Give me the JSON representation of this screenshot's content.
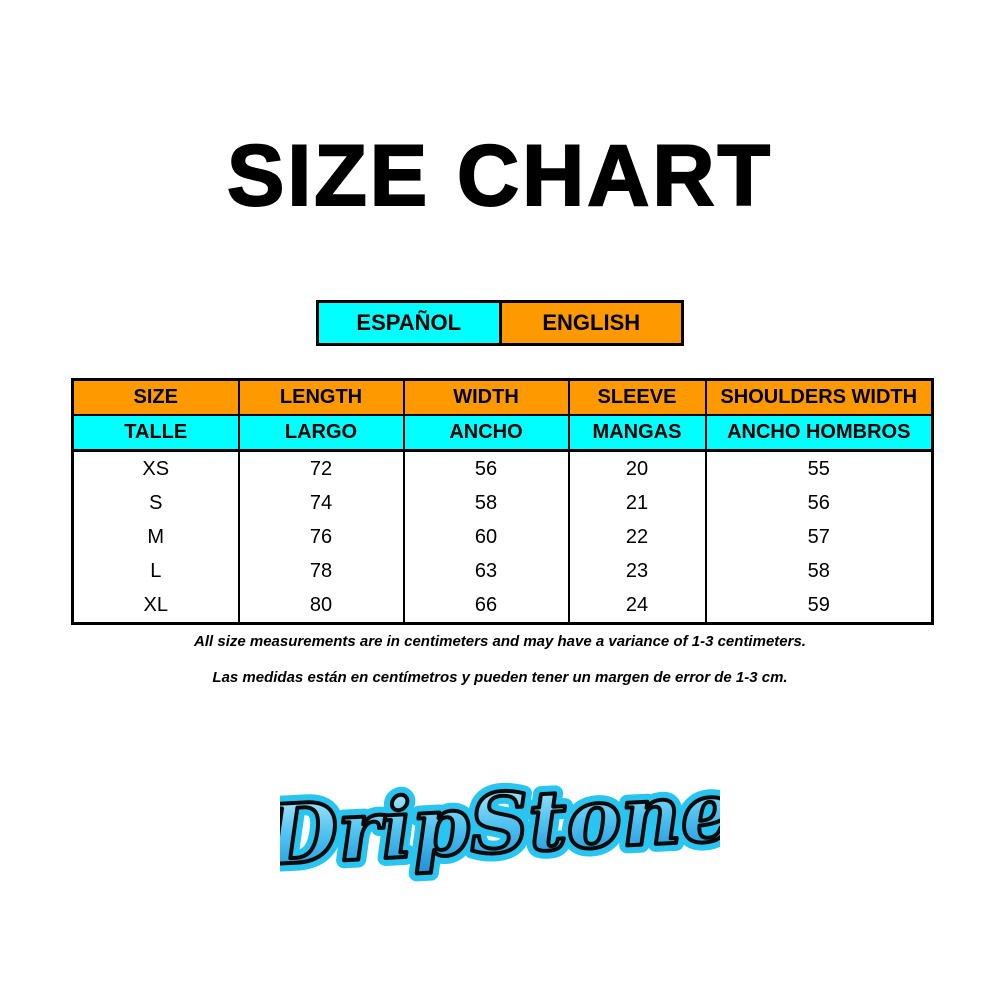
{
  "title": "SIZE CHART",
  "language_toggle": {
    "espanol": "ESPAÑOL",
    "english": "ENGLISH"
  },
  "colors": {
    "orange": "#ff9900",
    "cyan": "#00ffff"
  },
  "table": {
    "headers_en": [
      "SIZE",
      "LENGTH",
      "WIDTH",
      "SLEEVE",
      "SHOULDERS WIDTH"
    ],
    "headers_es": [
      "TALLE",
      "LARGO",
      "ANCHO",
      "MANGAS",
      "ANCHO HOMBROS"
    ],
    "rows": [
      [
        "XS",
        "72",
        "56",
        "20",
        "55"
      ],
      [
        "S",
        "74",
        "58",
        "21",
        "56"
      ],
      [
        "M",
        "76",
        "60",
        "22",
        "57"
      ],
      [
        "L",
        "78",
        "63",
        "23",
        "58"
      ],
      [
        "XL",
        "80",
        "66",
        "24",
        "59"
      ]
    ]
  },
  "notes": {
    "en": "All size measurements are in centimeters and may have a variance of 1-3 centimeters.",
    "es": "Las medidas están en centímetros y pueden tener un margen de error de 1-3 cm."
  },
  "logo": {
    "text": "DripStone"
  }
}
